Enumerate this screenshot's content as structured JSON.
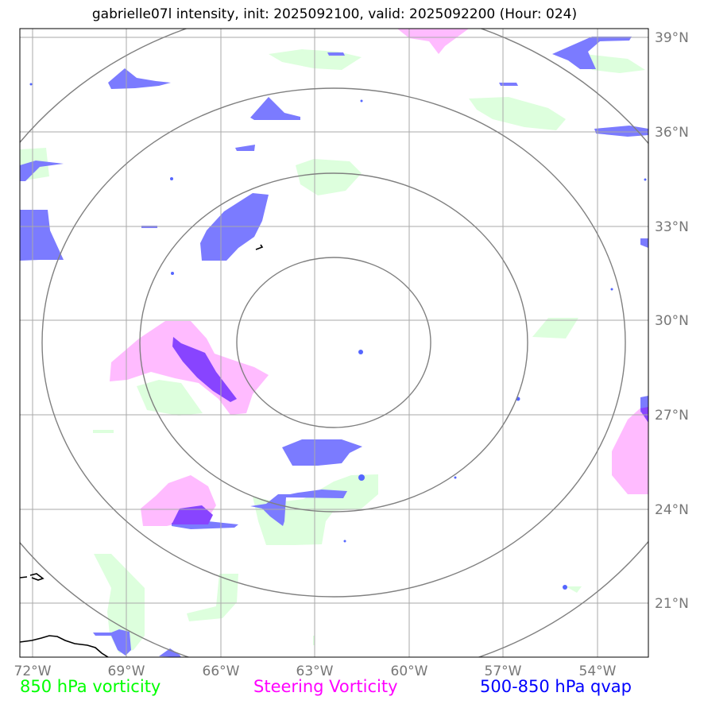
{
  "title": "gabrielle07l intensity, init: 2025092100, valid: 2025092200 (Hour: 024)",
  "axes": {
    "lon_labels": [
      "72°W",
      "69°W",
      "66°W",
      "63°W",
      "60°W",
      "57°W",
      "54°W"
    ],
    "lat_labels": [
      "39°N",
      "36°N",
      "33°N",
      "30°N",
      "27°N",
      "24°N",
      "21°N"
    ]
  },
  "legend": [
    {
      "label": "850 hPa vorticity",
      "color": "#00ff00"
    },
    {
      "label": "Steering Vorticity",
      "color": "#ff00ff"
    },
    {
      "label": "500-850 hPa qvap",
      "color": "#0000ff"
    }
  ],
  "colors": {
    "vort850_fill": "#ddffdd",
    "steering_fill": "#ffbbff",
    "qvap_fill": "#7b7bff",
    "overlap_fill": "#8844ff",
    "grid": "#aaaaaa",
    "rings": "#808080",
    "coast": "#000000"
  }
}
